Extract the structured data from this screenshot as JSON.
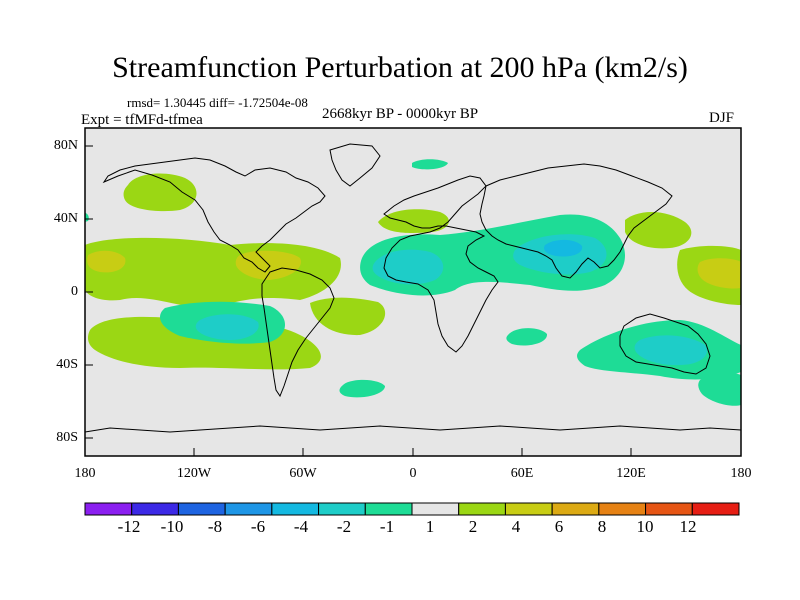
{
  "title": "Streamfunction Perturbation at 200 hPa (km2/s)",
  "stats": "rmsd= 1.30445 diff= -1.72504e-08",
  "experiment": "Expt = tfMFd-tfmea",
  "period": "2668kyr BP - 0000kyr BP",
  "season": "DJF",
  "lat_labels": [
    "80N",
    "40N",
    "0",
    "40S",
    "80S"
  ],
  "lon_labels": [
    "180",
    "120W",
    "60W",
    "0",
    "60E",
    "120E",
    "180"
  ],
  "colorbar": {
    "labels": [
      "-12",
      "-10",
      "-8",
      "-6",
      "-4",
      "-2",
      "-1",
      "1",
      "2",
      "4",
      "6",
      "8",
      "10",
      "12"
    ],
    "colors": [
      "#8b1ff0",
      "#3c29e6",
      "#1e64e1",
      "#1e96e6",
      "#14b9e1",
      "#1ecdc8",
      "#1edc96",
      "#e6e6e6",
      "#9bd714",
      "#c8cd14",
      "#dcaa14",
      "#e68214",
      "#e65514",
      "#e61e14"
    ]
  },
  "colors": {
    "background": "#e6e6e6",
    "positive_1_2": "#9bd714",
    "positive_2_4": "#c8cd14",
    "negative_1_2": "#1edc96",
    "negative_2_4": "#1ecdc8",
    "negative_4_6": "#14b9e1"
  }
}
